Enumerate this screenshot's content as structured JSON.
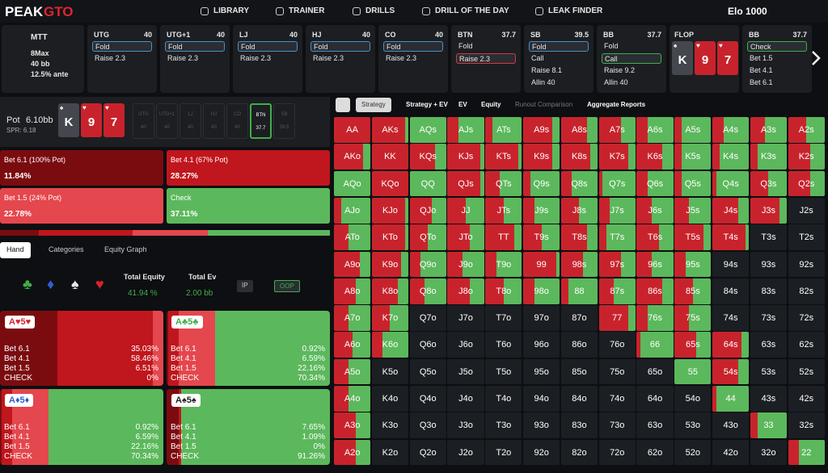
{
  "nav": {
    "logo_a": "PEAK",
    "logo_b": "GTO",
    "items": [
      "LIBRARY",
      "TRAINER",
      "DRILLS",
      "DRILL OF THE DAY",
      "LEAK FINDER"
    ],
    "elo": "Elo 1000"
  },
  "settings": {
    "format": "MTT",
    "lines": [
      "8Max",
      "40 bb",
      "12.5% ante"
    ]
  },
  "positions": [
    {
      "pos": "UTG",
      "stack": 40,
      "actions": [
        "Fold",
        "Raise 2.3"
      ],
      "selected": 0,
      "selected_color": "#4a90c8"
    },
    {
      "pos": "UTG+1",
      "stack": 40,
      "actions": [
        "Fold",
        "Raise 2.3"
      ],
      "selected": 0,
      "selected_color": "#4a90c8"
    },
    {
      "pos": "LJ",
      "stack": 40,
      "actions": [
        "Fold",
        "Raise 2.3"
      ],
      "selected": 0,
      "selected_color": "#4a90c8"
    },
    {
      "pos": "HJ",
      "stack": 40,
      "actions": [
        "Fold",
        "Raise 2.3"
      ],
      "selected": 0,
      "selected_color": "#4a90c8"
    },
    {
      "pos": "CO",
      "stack": 40,
      "actions": [
        "Fold",
        "Raise 2.3"
      ],
      "selected": 0,
      "selected_color": "#4a90c8"
    },
    {
      "pos": "BTN",
      "stack": 37.7,
      "actions": [
        "Fold",
        "Raise 2.3"
      ],
      "selected": 1,
      "selected_color": "#d9363e"
    },
    {
      "pos": "SB",
      "stack": 39.5,
      "actions": [
        "Fold",
        "Call",
        "Raise 8.1",
        "Allin 40"
      ],
      "selected": 0,
      "selected_color": "#4a90c8"
    },
    {
      "pos": "BB",
      "stack": 37.7,
      "actions": [
        "Fold",
        "Call",
        "Raise 9.2",
        "Allin 40"
      ],
      "selected": 1,
      "selected_color": "#3fae49"
    },
    {
      "pos": "BB",
      "stack": 37.7,
      "actions": [
        "Check",
        "Bet 1.5",
        "Bet 4.1",
        "Bet 6.1"
      ],
      "selected": 0,
      "selected_color": "#3fae49"
    }
  ],
  "flop": {
    "label": "FLOP",
    "cards": [
      {
        "rank": "K",
        "suit": "♠",
        "color": "#44474d"
      },
      {
        "rank": "9",
        "suit": "♥",
        "color": "#c8232c"
      },
      {
        "rank": "7",
        "suit": "♥",
        "color": "#c8232c"
      }
    ]
  },
  "pot": {
    "label": "Pot",
    "value": "6.10bb",
    "spr": "SPR: 6.18",
    "active": 5,
    "seats": [
      {
        "pos": "UTG",
        "stack": 40
      },
      {
        "pos": "UTG+1",
        "stack": 40
      },
      {
        "pos": "LJ",
        "stack": 40
      },
      {
        "pos": "HJ",
        "stack": 40
      },
      {
        "pos": "CO",
        "stack": 40
      },
      {
        "pos": "BTN",
        "stack": 37.7
      },
      {
        "pos": "SB",
        "stack": 39.5
      }
    ]
  },
  "actions": [
    {
      "name": "Bet 6.1 (100% Pot)",
      "value": 11.84,
      "label": "11.84%",
      "color": "#7a0c10"
    },
    {
      "name": "Bet 4.1 (67% Pot)",
      "value": 28.27,
      "label": "28.27%",
      "color": "#c0161d"
    },
    {
      "name": "Bet 1.5 (24% Pot)",
      "value": 22.78,
      "label": "22.78%",
      "color": "#e4474d"
    },
    {
      "name": "Check",
      "value": 37.11,
      "label": "37.11%",
      "color": "#5cb85c"
    }
  ],
  "hand_tabs": [
    "Hand",
    "Categories",
    "Equity Graph"
  ],
  "suits": [
    {
      "s": "♣",
      "color": "#3fae49"
    },
    {
      "s": "♦",
      "color": "#2f5fd0"
    },
    {
      "s": "♠",
      "color": "#e8e8e8"
    },
    {
      "s": "♥",
      "color": "#d9232c"
    }
  ],
  "equity": {
    "label": "Total Equity",
    "value": "41.94 %"
  },
  "ev": {
    "label": "Total Ev",
    "value": "2.00 bb"
  },
  "sides": [
    "IP",
    "OOP"
  ],
  "hands": [
    {
      "hand": "A♥5♥",
      "color": "#d9232c",
      "rows": [
        {
          "name": "Bet 6.1",
          "value": 35.03,
          "label": "35.03%"
        },
        {
          "name": "Bet 4.1",
          "value": 58.46,
          "label": "58.46%"
        },
        {
          "name": "Bet 1.5",
          "value": 6.51,
          "label": "6.51%"
        },
        {
          "name": "CHECK",
          "value": 0,
          "label": "0%"
        }
      ]
    },
    {
      "hand": "A♣5♣",
      "color": "#3fae49",
      "rows": [
        {
          "name": "Bet 6.1",
          "value": 0.92,
          "label": "0.92%"
        },
        {
          "name": "Bet 4.1",
          "value": 6.59,
          "label": "6.59%"
        },
        {
          "name": "Bet 1.5",
          "value": 22.16,
          "label": "22.16%"
        },
        {
          "name": "CHECK",
          "value": 70.34,
          "label": "70.34%"
        }
      ]
    },
    {
      "hand": "A♦5♦",
      "color": "#2f5fd0",
      "rows": [
        {
          "name": "Bet 6.1",
          "value": 0.92,
          "label": "0.92%"
        },
        {
          "name": "Bet 4.1",
          "value": 6.59,
          "label": "6.59%"
        },
        {
          "name": "Bet 1.5",
          "value": 22.16,
          "label": "22.16%"
        },
        {
          "name": "CHECK",
          "value": 70.34,
          "label": "70.34%"
        }
      ]
    },
    {
      "hand": "A♠5♠",
      "color": "#222222",
      "rows": [
        {
          "name": "Bet 6.1",
          "value": 7.65,
          "label": "7.65%"
        },
        {
          "name": "Bet 4.1",
          "value": 1.09,
          "label": "1.09%"
        },
        {
          "name": "Bet 1.5",
          "value": 0,
          "label": "0%"
        },
        {
          "name": "CHECK",
          "value": 91.26,
          "label": "91.26%"
        }
      ]
    }
  ],
  "strategy_tabs": [
    "Strategy",
    "Strategy + EV",
    "EV",
    "Equity",
    "Runout Comparison",
    "Aggregate Reports"
  ],
  "grid": {
    "bet_color": "#c8232c",
    "check_color": "#5cb85c",
    "empty_color": "#1b1e23",
    "hands": [
      [
        "AA",
        "AKs",
        "AQs",
        "AJs",
        "ATs",
        "A9s",
        "A8s",
        "A7s",
        "A6s",
        "A5s",
        "A4s",
        "A3s",
        "A2s"
      ],
      [
        "AKo",
        "KK",
        "KQs",
        "KJs",
        "KTs",
        "K9s",
        "K8s",
        "K7s",
        "K6s",
        "K5s",
        "K4s",
        "K3s",
        "K2s"
      ],
      [
        "AQo",
        "KQo",
        "QQ",
        "QJs",
        "QTs",
        "Q9s",
        "Q8s",
        "Q7s",
        "Q6s",
        "Q5s",
        "Q4s",
        "Q3s",
        "Q2s"
      ],
      [
        "AJo",
        "KJo",
        "QJo",
        "JJ",
        "JTs",
        "J9s",
        "J8s",
        "J7s",
        "J6s",
        "J5s",
        "J4s",
        "J3s",
        "J2s"
      ],
      [
        "ATo",
        "KTo",
        "QTo",
        "JTo",
        "TT",
        "T9s",
        "T8s",
        "T7s",
        "T6s",
        "T5s",
        "T4s",
        "T3s",
        "T2s"
      ],
      [
        "A9o",
        "K9o",
        "Q9o",
        "J9o",
        "T9o",
        "99",
        "98s",
        "97s",
        "96s",
        "95s",
        "94s",
        "93s",
        "92s"
      ],
      [
        "A8o",
        "K8o",
        "Q8o",
        "J8o",
        "T8o",
        "98o",
        "88",
        "87s",
        "86s",
        "85s",
        "84s",
        "83s",
        "82s"
      ],
      [
        "A7o",
        "K7o",
        "Q7o",
        "J7o",
        "T7o",
        "97o",
        "87o",
        "77",
        "76s",
        "75s",
        "74s",
        "73s",
        "72s"
      ],
      [
        "A6o",
        "K6o",
        "Q6o",
        "J6o",
        "T6o",
        "96o",
        "86o",
        "76o",
        "66",
        "65s",
        "64s",
        "63s",
        "62s"
      ],
      [
        "A5o",
        "K5o",
        "Q5o",
        "J5o",
        "T5o",
        "95o",
        "85o",
        "75o",
        "65o",
        "55",
        "54s",
        "53s",
        "52s"
      ],
      [
        "A4o",
        "K4o",
        "Q4o",
        "J4o",
        "T4o",
        "94o",
        "84o",
        "74o",
        "64o",
        "54o",
        "44",
        "43s",
        "42s"
      ],
      [
        "A3o",
        "K3o",
        "Q3o",
        "J3o",
        "T3o",
        "93o",
        "83o",
        "73o",
        "63o",
        "53o",
        "43o",
        "33",
        "32s"
      ],
      [
        "A2o",
        "K2o",
        "Q2o",
        "J2o",
        "T2o",
        "92o",
        "82o",
        "72o",
        "62o",
        "52o",
        "42o",
        "32o",
        "22"
      ]
    ],
    "check": [
      [
        0,
        10,
        100,
        70,
        80,
        20,
        30,
        40,
        70,
        80,
        70,
        60,
        50
      ],
      [
        20,
        0,
        30,
        10,
        10,
        20,
        20,
        20,
        30,
        80,
        80,
        80,
        40
      ],
      [
        100,
        0,
        100,
        10,
        60,
        80,
        70,
        90,
        70,
        80,
        90,
        50,
        40
      ],
      [
        80,
        10,
        40,
        50,
        50,
        70,
        50,
        70,
        60,
        60,
        30,
        20,
        null
      ],
      [
        60,
        10,
        50,
        40,
        20,
        50,
        30,
        80,
        40,
        20,
        10,
        null,
        null
      ],
      [
        30,
        20,
        70,
        60,
        70,
        10,
        40,
        40,
        60,
        70,
        null,
        null,
        null
      ],
      [
        40,
        30,
        60,
        40,
        50,
        70,
        80,
        60,
        30,
        50,
        null,
        null,
        null
      ],
      [
        60,
        50,
        null,
        null,
        null,
        null,
        null,
        20,
        70,
        60,
        null,
        null,
        null
      ],
      [
        50,
        70,
        null,
        null,
        null,
        null,
        null,
        null,
        90,
        40,
        20,
        null,
        null
      ],
      [
        60,
        null,
        null,
        null,
        null,
        null,
        null,
        null,
        null,
        100,
        30,
        null,
        null
      ],
      [
        60,
        null,
        null,
        null,
        null,
        null,
        null,
        null,
        null,
        null,
        90,
        null,
        null
      ],
      [
        40,
        null,
        null,
        null,
        null,
        null,
        null,
        null,
        null,
        null,
        null,
        80,
        null
      ],
      [
        40,
        null,
        null,
        null,
        null,
        null,
        null,
        null,
        null,
        null,
        null,
        null,
        70
      ]
    ]
  }
}
